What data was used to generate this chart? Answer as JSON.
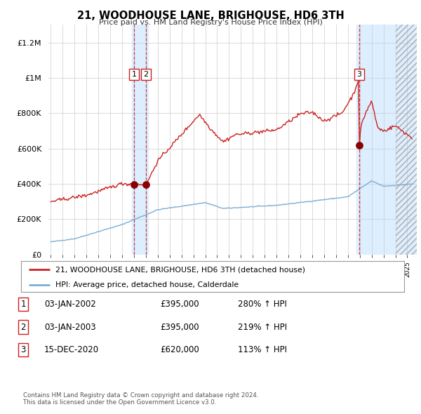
{
  "title": "21, WOODHOUSE LANE, BRIGHOUSE, HD6 3TH",
  "subtitle": "Price paid vs. HM Land Registry's House Price Index (HPI)",
  "legend_line1": "21, WOODHOUSE LANE, BRIGHOUSE, HD6 3TH (detached house)",
  "legend_line2": "HPI: Average price, detached house, Calderdale",
  "footer1": "Contains HM Land Registry data © Crown copyright and database right 2024.",
  "footer2": "This data is licensed under the Open Government Licence v3.0.",
  "table": [
    [
      "1",
      "03-JAN-2002",
      "£395,000",
      "280% ↑ HPI"
    ],
    [
      "2",
      "03-JAN-2003",
      "£395,000",
      "219% ↑ HPI"
    ],
    [
      "3",
      "15-DEC-2020",
      "£620,000",
      "113% ↑ HPI"
    ]
  ],
  "sale_dates": [
    2002.01,
    2003.01,
    2020.96
  ],
  "sale_prices": [
    395000,
    395000,
    620000
  ],
  "sale_numbers": [
    "1",
    "2",
    "3"
  ],
  "hpi_color": "#7bafd4",
  "price_color": "#cc2222",
  "dot_color": "#880000",
  "background_color": "#ffffff",
  "grid_color": "#cccccc",
  "shade_color": "#ddeeff",
  "ylim": [
    0,
    1300000
  ],
  "xlim": [
    1994.8,
    2025.8
  ],
  "yticks": [
    0,
    200000,
    400000,
    600000,
    800000,
    1000000,
    1200000
  ],
  "ytick_labels": [
    "£0",
    "£200K",
    "£400K",
    "£600K",
    "£800K",
    "£1M",
    "£1.2M"
  ]
}
